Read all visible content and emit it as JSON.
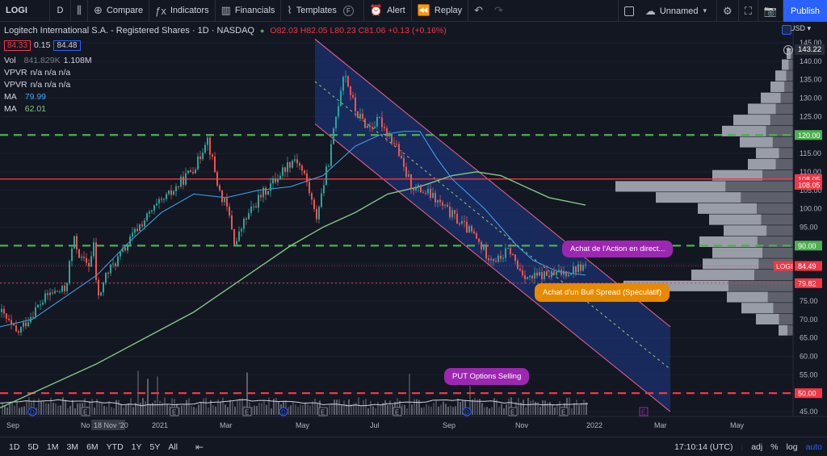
{
  "toolbar": {
    "symbol": "LOGI",
    "interval": "D",
    "compare": "Compare",
    "indicators": "Indicators",
    "financials": "Financials",
    "templates": "Templates",
    "alert": "Alert",
    "replay": "Replay",
    "layout_name": "Unnamed",
    "publish": "Publish"
  },
  "legend": {
    "title": "Logitech International S.A. - Registered Shares · 1D · NASDAQ",
    "ohlc": "O82.03 H82.05 L80.23 C81.06 +0.13 (+0.16%)",
    "bid": "84.33",
    "spread": "0.15",
    "ask": "84.48",
    "vol_label": "Vol",
    "vol_value1": "841.829K",
    "vol_value2": "1.108M",
    "vpvr1_label": "VPVR",
    "vpvr1_value": "n/a n/a n/a",
    "vpvr2_label": "VPVR",
    "vpvr2_value": "n/a n/a n/a",
    "ma1_label": "MA",
    "ma1_value": "79.99",
    "ma2_label": "MA",
    "ma2_value": "62.01"
  },
  "currency": "USD",
  "price_axis": {
    "ticks": [
      "145.00",
      "140.00",
      "135.00",
      "130.00",
      "125.00",
      "120.00",
      "115.00",
      "110.00",
      "105.00",
      "100.00",
      "95.00",
      "90.00",
      "85.00",
      "80.00",
      "75.00",
      "70.00",
      "65.00",
      "60.00",
      "55.00",
      "50.00",
      "45.00"
    ],
    "top_label": "143.22",
    "labels": [
      {
        "text": "120.00",
        "color": "#4caf50",
        "price": 120
      },
      {
        "text": "108.05",
        "color": "#f23645",
        "price": 108.05
      },
      {
        "text": "108.05",
        "color": "#f23645",
        "price": 106.5
      },
      {
        "text": "90.00",
        "color": "#4caf50",
        "price": 90
      },
      {
        "text": "84.49",
        "color": "#f23645",
        "price": 84.49
      },
      {
        "text": "79.82",
        "color": "#f23645",
        "price": 79.82
      },
      {
        "text": "50.00",
        "color": "#f23645",
        "price": 50
      }
    ],
    "symbol_tag": "LOGI"
  },
  "time_axis": {
    "labels": [
      "Sep",
      "No",
      "18 Nov '20",
      "2021",
      "Mar",
      "May",
      "Jul",
      "Sep",
      "Nov",
      "2022",
      "Mar",
      "May"
    ]
  },
  "annotations": {
    "buy_stock": "Achat de l'Action en direct...",
    "bull_spread": "Achat d'un Bull Spread (Spéculatif)",
    "put_selling": "PUT Options Selling"
  },
  "colors": {
    "accent": "#2962ff",
    "green_line": "#4caf50",
    "red_line": "#f23645",
    "channel": "#1e3a8a",
    "purple": "#9c27b0",
    "orange": "#ff9800"
  },
  "chart_data": {
    "type": "candlestick",
    "symbol": "LOGI",
    "ylim": [
      45,
      147
    ],
    "horizontal_lines": [
      {
        "price": 120,
        "style": "dashed",
        "color": "#4caf50"
      },
      {
        "price": 108.05,
        "style": "solid",
        "color": "#f23645"
      },
      {
        "price": 90,
        "style": "dashed",
        "color": "#4caf50"
      },
      {
        "price": 79.82,
        "style": "dotted",
        "color": "#f23645"
      },
      {
        "price": 50,
        "style": "dashed",
        "color": "#f23645"
      }
    ],
    "price_path": [
      [
        0,
        72
      ],
      [
        20,
        66
      ],
      [
        40,
        72
      ],
      [
        60,
        77
      ],
      [
        80,
        78
      ],
      [
        90,
        92
      ],
      [
        100,
        86
      ],
      [
        110,
        85
      ],
      [
        115,
        90
      ],
      [
        120,
        75
      ],
      [
        130,
        82
      ],
      [
        150,
        88
      ],
      [
        170,
        95
      ],
      [
        190,
        100
      ],
      [
        210,
        104
      ],
      [
        230,
        109
      ],
      [
        245,
        113
      ],
      [
        255,
        120
      ],
      [
        262,
        113
      ],
      [
        270,
        105
      ],
      [
        280,
        100
      ],
      [
        285,
        96
      ],
      [
        290,
        90
      ],
      [
        300,
        96
      ],
      [
        320,
        103
      ],
      [
        340,
        108
      ],
      [
        355,
        112
      ],
      [
        365,
        114
      ],
      [
        378,
        108
      ],
      [
        385,
        102
      ],
      [
        390,
        97
      ],
      [
        398,
        105
      ],
      [
        408,
        115
      ],
      [
        415,
        125
      ],
      [
        425,
        138
      ],
      [
        432,
        132
      ],
      [
        440,
        126
      ],
      [
        455,
        122
      ],
      [
        470,
        124
      ],
      [
        480,
        120
      ],
      [
        490,
        117
      ],
      [
        498,
        111
      ],
      [
        510,
        106
      ],
      [
        530,
        104
      ],
      [
        550,
        100
      ],
      [
        570,
        96
      ],
      [
        585,
        93
      ],
      [
        600,
        88
      ],
      [
        615,
        86
      ],
      [
        630,
        89
      ],
      [
        640,
        84
      ],
      [
        655,
        81
      ],
      [
        670,
        82
      ],
      [
        685,
        82
      ],
      [
        700,
        83
      ],
      [
        715,
        84
      ],
      [
        725,
        84.5
      ]
    ],
    "ma_fast": [
      [
        0,
        68
      ],
      [
        40,
        70
      ],
      [
        80,
        76
      ],
      [
        120,
        82
      ],
      [
        160,
        91
      ],
      [
        200,
        99
      ],
      [
        240,
        104
      ],
      [
        280,
        103
      ],
      [
        320,
        105
      ],
      [
        360,
        106
      ],
      [
        400,
        109
      ],
      [
        440,
        117
      ],
      [
        470,
        120
      ],
      [
        500,
        121
      ],
      [
        520,
        121
      ],
      [
        540,
        114
      ],
      [
        560,
        108
      ],
      [
        580,
        104
      ],
      [
        600,
        100
      ],
      [
        620,
        95
      ],
      [
        640,
        90
      ],
      [
        660,
        86
      ],
      [
        690,
        83
      ],
      [
        725,
        82
      ]
    ],
    "ma_slow": [
      [
        0,
        46
      ],
      [
        60,
        52
      ],
      [
        120,
        58
      ],
      [
        180,
        65
      ],
      [
        240,
        72
      ],
      [
        280,
        78
      ],
      [
        320,
        84
      ],
      [
        360,
        90
      ],
      [
        400,
        95
      ],
      [
        440,
        99
      ],
      [
        480,
        104
      ],
      [
        520,
        106
      ],
      [
        560,
        109
      ],
      [
        590,
        110
      ],
      [
        620,
        109
      ],
      [
        650,
        106
      ],
      [
        680,
        103
      ],
      [
        725,
        101
      ]
    ],
    "channel_upper": [
      [
        390,
        146
      ],
      [
        830,
        68
      ]
    ],
    "channel_lower": [
      [
        390,
        123
      ],
      [
        830,
        45
      ]
    ],
    "volume_profile": [
      {
        "price": 142,
        "width": 8
      },
      {
        "price": 139,
        "width": 14
      },
      {
        "price": 136,
        "width": 22
      },
      {
        "price": 133,
        "width": 28
      },
      {
        "price": 130,
        "width": 40
      },
      {
        "price": 127,
        "width": 56
      },
      {
        "price": 124,
        "width": 74
      },
      {
        "price": 121,
        "width": 88
      },
      {
        "price": 118,
        "width": 66
      },
      {
        "price": 115,
        "width": 46
      },
      {
        "price": 112,
        "width": 56
      },
      {
        "price": 109,
        "width": 100
      },
      {
        "price": 106,
        "width": 220
      },
      {
        "price": 103,
        "width": 170
      },
      {
        "price": 100,
        "width": 118
      },
      {
        "price": 97,
        "width": 104
      },
      {
        "price": 94,
        "width": 86
      },
      {
        "price": 91,
        "width": 116
      },
      {
        "price": 88,
        "width": 100
      },
      {
        "price": 85,
        "width": 112
      },
      {
        "price": 82,
        "width": 126
      },
      {
        "price": 79,
        "width": 210
      },
      {
        "price": 76,
        "width": 82
      },
      {
        "price": 73,
        "width": 64
      },
      {
        "price": 70,
        "width": 46
      },
      {
        "price": 67,
        "width": 18
      }
    ]
  }
}
